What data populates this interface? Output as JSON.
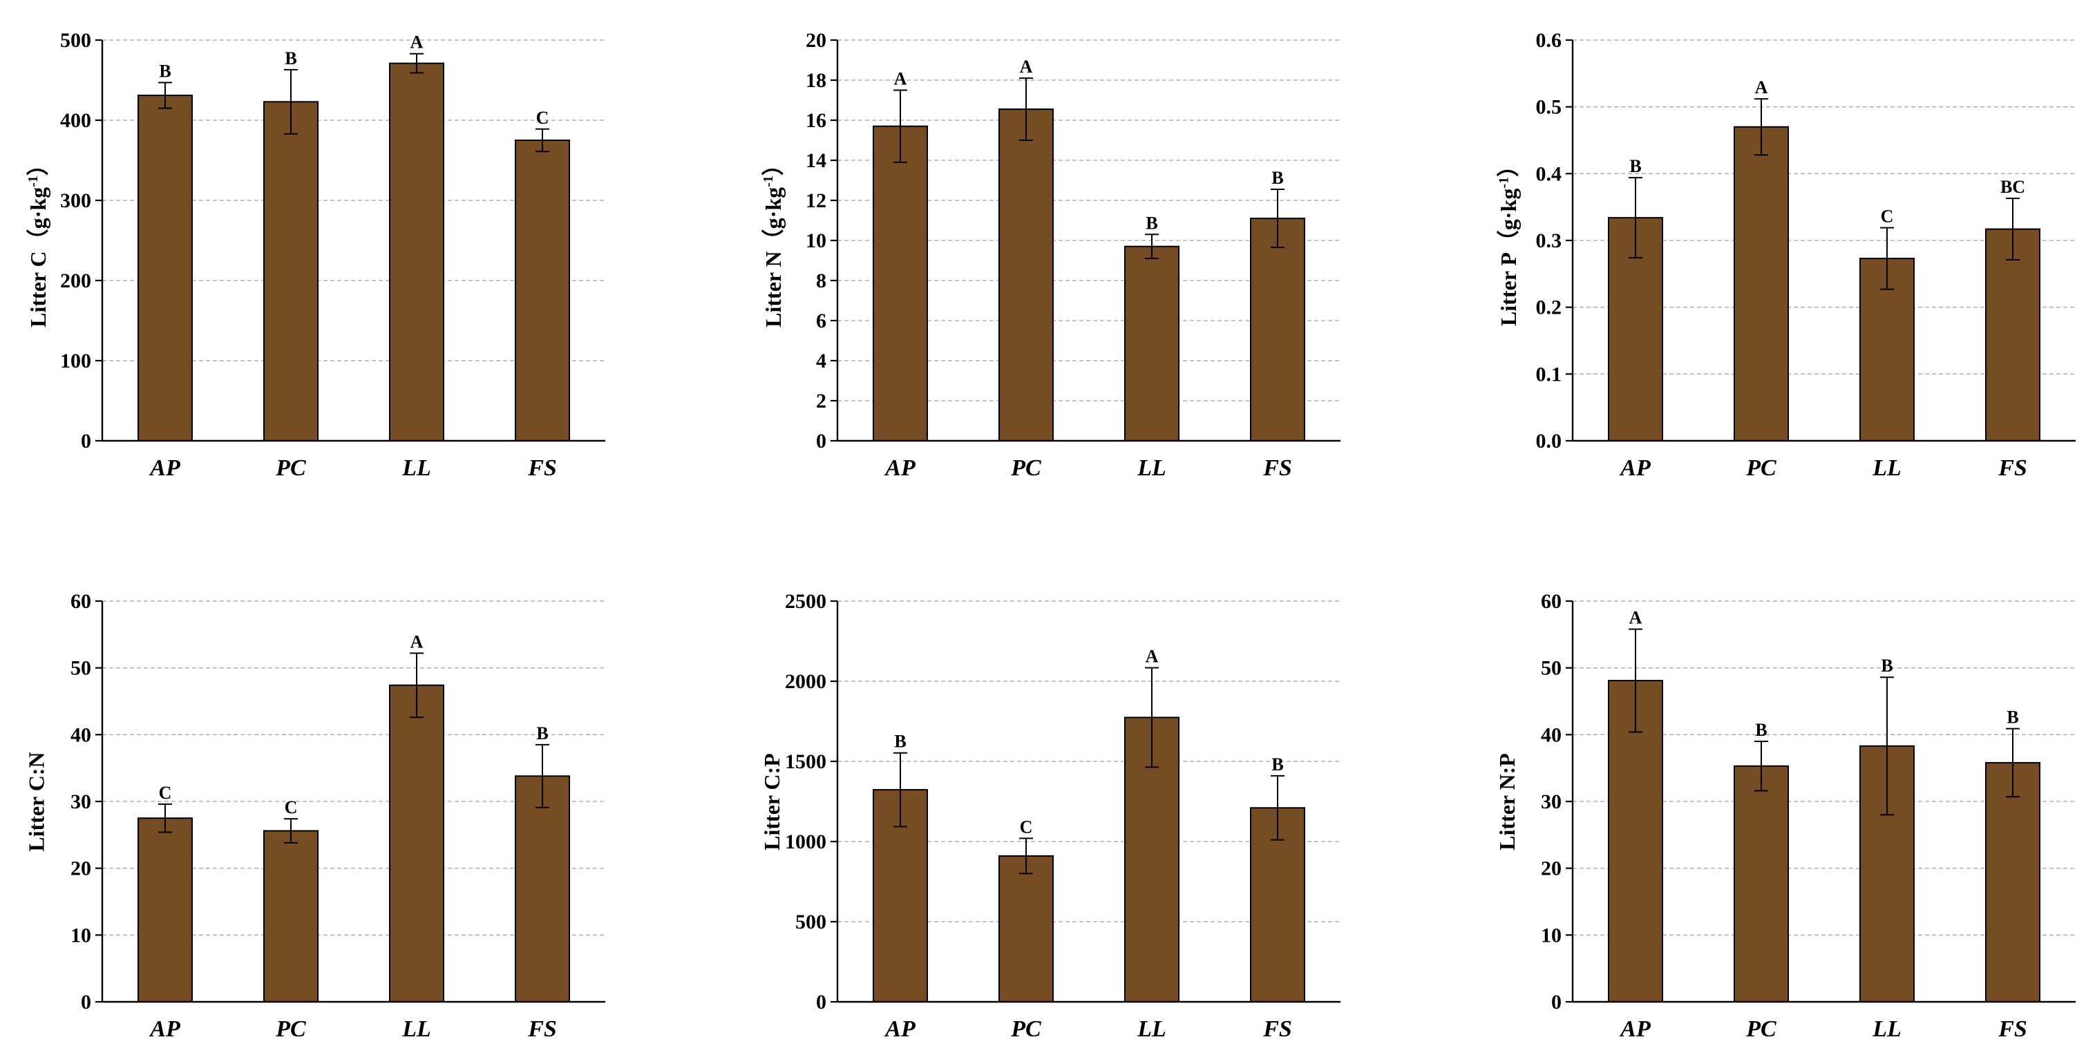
{
  "colors": {
    "bar": "#754c24",
    "bar_edge": "#000000",
    "grid": "#b0b0b0",
    "axis": "#000000"
  },
  "chart_data": [
    {
      "type": "bar",
      "title": "",
      "ylabel_main": "Litter C",
      "ylabel_unit": "（g·kg",
      "ylabel_sup": "-1",
      "ylabel_close": "）",
      "categories": [
        "AP",
        "PC",
        "LL",
        "FS"
      ],
      "values": [
        431,
        423,
        471,
        375
      ],
      "errors": [
        16,
        40,
        12,
        14
      ],
      "letters": [
        "B",
        "B",
        "A",
        "C"
      ],
      "ylim": [
        0,
        500
      ],
      "yticks": [
        0,
        100,
        200,
        300,
        400,
        500
      ],
      "ytick_labels": [
        "0",
        "100",
        "200",
        "300",
        "400",
        "500"
      ]
    },
    {
      "type": "bar",
      "title": "",
      "ylabel_main": "Litter N",
      "ylabel_unit": "（g·kg",
      "ylabel_sup": "-1",
      "ylabel_close": "）",
      "categories": [
        "AP",
        "PC",
        "LL",
        "FS"
      ],
      "values": [
        15.7,
        16.55,
        9.7,
        11.1
      ],
      "errors": [
        1.8,
        1.55,
        0.6,
        1.45
      ],
      "letters": [
        "A",
        "A",
        "B",
        "B"
      ],
      "ylim": [
        0,
        20
      ],
      "yticks": [
        0,
        2,
        4,
        6,
        8,
        10,
        12,
        14,
        16,
        18,
        20
      ],
      "ytick_labels": [
        "0",
        "2",
        "4",
        "6",
        "8",
        "10",
        "12",
        "14",
        "16",
        "18",
        "20"
      ]
    },
    {
      "type": "bar",
      "title": "",
      "ylabel_main": "Litter P",
      "ylabel_unit": "（g·kg",
      "ylabel_sup": "-1",
      "ylabel_close": "）",
      "categories": [
        "AP",
        "PC",
        "LL",
        "FS"
      ],
      "values": [
        0.334,
        0.47,
        0.273,
        0.317
      ],
      "errors": [
        0.06,
        0.042,
        0.046,
        0.046
      ],
      "letters": [
        "B",
        "A",
        "C",
        "BC"
      ],
      "ylim": [
        0,
        0.6
      ],
      "yticks": [
        0,
        0.1,
        0.2,
        0.3,
        0.4,
        0.5,
        0.6
      ],
      "ytick_labels": [
        "0.0",
        "0.1",
        "0.2",
        "0.3",
        "0.4",
        "0.5",
        "0.6"
      ]
    },
    {
      "type": "bar",
      "title": "",
      "ylabel_main": "Litter C:N",
      "ylabel_unit": "",
      "ylabel_sup": "",
      "ylabel_close": "",
      "categories": [
        "AP",
        "PC",
        "LL",
        "FS"
      ],
      "values": [
        27.5,
        25.6,
        47.4,
        33.8
      ],
      "errors": [
        2.1,
        1.8,
        4.8,
        4.7
      ],
      "letters": [
        "C",
        "C",
        "A",
        "B"
      ],
      "ylim": [
        0,
        60
      ],
      "yticks": [
        0,
        10,
        20,
        30,
        40,
        50,
        60
      ],
      "ytick_labels": [
        "0",
        "10",
        "20",
        "30",
        "40",
        "50",
        "60"
      ]
    },
    {
      "type": "bar",
      "title": "",
      "ylabel_main": "Litter C:P",
      "ylabel_unit": "",
      "ylabel_sup": "",
      "ylabel_close": "",
      "categories": [
        "AP",
        "PC",
        "LL",
        "FS"
      ],
      "values": [
        1323,
        910,
        1774,
        1210
      ],
      "errors": [
        230,
        110,
        310,
        200
      ],
      "letters": [
        "B",
        "C",
        "A",
        "B"
      ],
      "ylim": [
        0,
        2500
      ],
      "yticks": [
        0,
        500,
        1000,
        1500,
        2000,
        2500
      ],
      "ytick_labels": [
        "0",
        "500",
        "1000",
        "1500",
        "2000",
        "2500"
      ]
    },
    {
      "type": "bar",
      "title": "",
      "ylabel_main": "Litter N:P",
      "ylabel_unit": "",
      "ylabel_sup": "",
      "ylabel_close": "",
      "categories": [
        "AP",
        "PC",
        "LL",
        "FS"
      ],
      "values": [
        48.1,
        35.3,
        38.3,
        35.8
      ],
      "errors": [
        7.7,
        3.7,
        10.3,
        5.1
      ],
      "letters": [
        "A",
        "B",
        "B",
        "B"
      ],
      "ylim": [
        0,
        60
      ],
      "yticks": [
        0,
        10,
        20,
        30,
        40,
        50,
        60
      ],
      "ytick_labels": [
        "0",
        "10",
        "20",
        "30",
        "40",
        "50",
        "60"
      ]
    }
  ]
}
